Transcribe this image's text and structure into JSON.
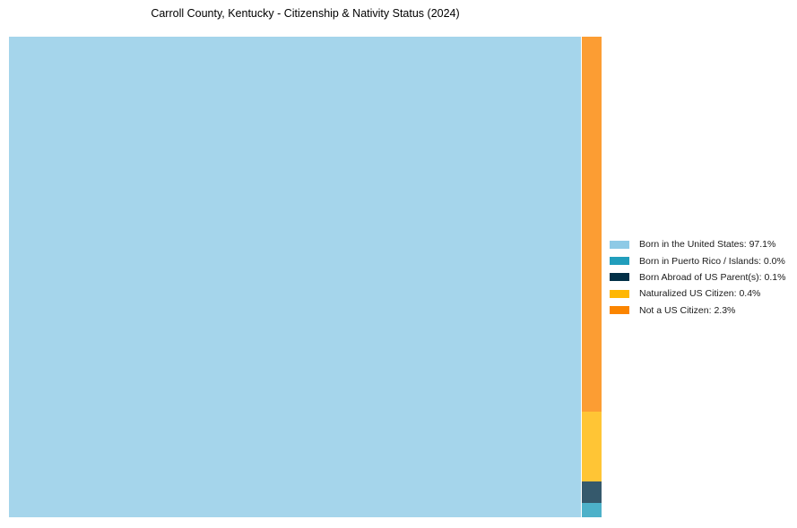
{
  "chart_data": {
    "type": "treemap",
    "title": "Carroll County, Kentucky - Citizenship & Nativity Status (2024)",
    "unit": "%",
    "legend_position": "right-center",
    "cell_fill_opacity": 0.8,
    "categories": [
      "Born in the United States",
      "Born in Puerto Rico / Islands",
      "Born Abroad of US Parent(s)",
      "Naturalized US Citizen",
      "Not a US Citizen"
    ],
    "values": [
      97.1,
      0.0,
      0.1,
      0.4,
      2.3
    ],
    "items": [
      {
        "label": "Born in the United States",
        "value": 97.1,
        "legend_label": "Born in the United States: 97.1%",
        "color": "#8ECAE6"
      },
      {
        "label": "Born in Puerto Rico / Islands",
        "value": 0.0,
        "legend_label": "Born in Puerto Rico / Islands: 0.0%",
        "color": "#219EBC"
      },
      {
        "label": "Born Abroad of US Parent(s)",
        "value": 0.1,
        "legend_label": "Born Abroad of US Parent(s): 0.1%",
        "color": "#023047"
      },
      {
        "label": "Naturalized US Citizen",
        "value": 0.4,
        "legend_label": "Naturalized US Citizen: 0.4%",
        "color": "#FFB703"
      },
      {
        "label": "Not a US Citizen",
        "value": 2.3,
        "legend_label": "Not a US Citizen: 2.3%",
        "color": "#FB8500"
      }
    ]
  }
}
